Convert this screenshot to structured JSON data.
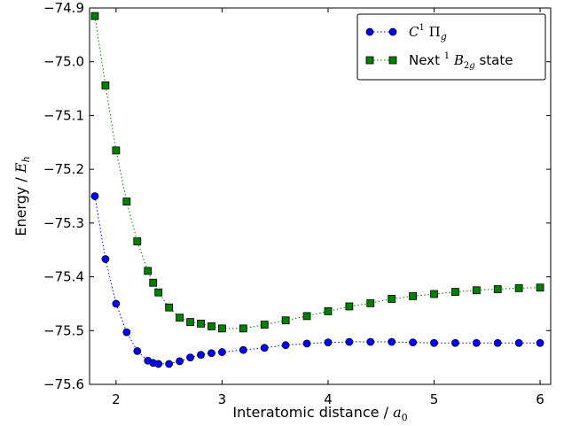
{
  "chart_data": {
    "type": "line",
    "xlabel": "Interatomic distance / a0",
    "ylabel": "Energy / Eh",
    "xlim": [
      1.75,
      6.1
    ],
    "ylim": [
      -75.6,
      -74.9
    ],
    "xticks": [
      2,
      3,
      4,
      5,
      6
    ],
    "yticks": [
      -74.9,
      -75.0,
      -75.1,
      -75.2,
      -75.3,
      -75.4,
      -75.5,
      -75.6
    ],
    "grid": false,
    "legend_position": "top-right",
    "series": [
      {
        "name": "C1 Πg",
        "color": "#0000ff",
        "marker": "circle",
        "line_style": "dotted",
        "x": [
          1.8,
          1.9,
          2.0,
          2.1,
          2.2,
          2.3,
          2.35,
          2.4,
          2.5,
          2.6,
          2.7,
          2.8,
          2.9,
          3.0,
          3.2,
          3.4,
          3.6,
          3.8,
          4.0,
          4.2,
          4.4,
          4.6,
          4.8,
          5.0,
          5.2,
          5.4,
          5.6,
          5.8,
          6.0
        ],
        "y": [
          -75.25,
          -75.367,
          -75.45,
          -75.503,
          -75.538,
          -75.556,
          -75.56,
          -75.562,
          -75.562,
          -75.557,
          -75.55,
          -75.545,
          -75.542,
          -75.54,
          -75.536,
          -75.532,
          -75.527,
          -75.524,
          -75.522,
          -75.521,
          -75.521,
          -75.521,
          -75.522,
          -75.523,
          -75.523,
          -75.523,
          -75.523,
          -75.523,
          -75.523
        ]
      },
      {
        "name": "Next 1 B2g state",
        "color": "#008000",
        "marker": "square",
        "line_style": "dotted",
        "x": [
          1.8,
          1.9,
          2.0,
          2.1,
          2.2,
          2.3,
          2.35,
          2.4,
          2.5,
          2.6,
          2.7,
          2.8,
          2.9,
          3.0,
          3.2,
          3.4,
          3.6,
          3.8,
          4.0,
          4.2,
          4.4,
          4.6,
          4.8,
          5.0,
          5.2,
          5.4,
          5.6,
          5.8,
          6.0
        ],
        "y": [
          -74.915,
          -75.044,
          -75.165,
          -75.26,
          -75.334,
          -75.389,
          -75.411,
          -75.429,
          -75.457,
          -75.476,
          -75.484,
          -75.487,
          -75.492,
          -75.496,
          -75.496,
          -75.489,
          -75.481,
          -75.473,
          -75.464,
          -75.455,
          -75.449,
          -75.441,
          -75.436,
          -75.432,
          -75.428,
          -75.425,
          -75.423,
          -75.421,
          -75.42
        ]
      }
    ]
  }
}
